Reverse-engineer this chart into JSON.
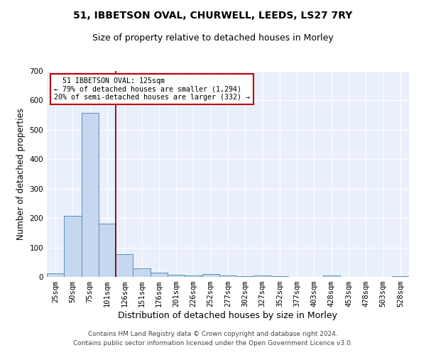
{
  "title": "51, IBBETSON OVAL, CHURWELL, LEEDS, LS27 7RY",
  "subtitle": "Size of property relative to detached houses in Morley",
  "xlabel": "Distribution of detached houses by size in Morley",
  "ylabel": "Number of detached properties",
  "categories": [
    "25sqm",
    "50sqm",
    "75sqm",
    "101sqm",
    "126sqm",
    "151sqm",
    "176sqm",
    "201sqm",
    "226sqm",
    "252sqm",
    "277sqm",
    "302sqm",
    "327sqm",
    "352sqm",
    "377sqm",
    "403sqm",
    "428sqm",
    "453sqm",
    "478sqm",
    "503sqm",
    "528sqm"
  ],
  "values": [
    12,
    207,
    557,
    180,
    78,
    30,
    14,
    7,
    5,
    9,
    5,
    2,
    5,
    2,
    0,
    0,
    6,
    0,
    0,
    0,
    2
  ],
  "bar_color": "#c5d8f0",
  "bar_edge_color": "#5b8db8",
  "vline_x": 3.5,
  "vline_color": "#8b0000",
  "annotation_text": "  51 IBBETSON OVAL: 125sqm\n← 79% of detached houses are smaller (1,294)\n20% of semi-detached houses are larger (332) →",
  "annotation_box_color": "white",
  "annotation_box_edge": "#c00000",
  "ylim": [
    0,
    700
  ],
  "yticks": [
    0,
    100,
    200,
    300,
    400,
    500,
    600,
    700
  ],
  "background_color": "#eaf0fb",
  "footer_text": "Contains HM Land Registry data © Crown copyright and database right 2024.\nContains public sector information licensed under the Open Government Licence v3.0.",
  "title_fontsize": 10,
  "subtitle_fontsize": 9,
  "xlabel_fontsize": 9,
  "ylabel_fontsize": 8.5,
  "tick_fontsize": 7.5,
  "footer_fontsize": 6.5
}
